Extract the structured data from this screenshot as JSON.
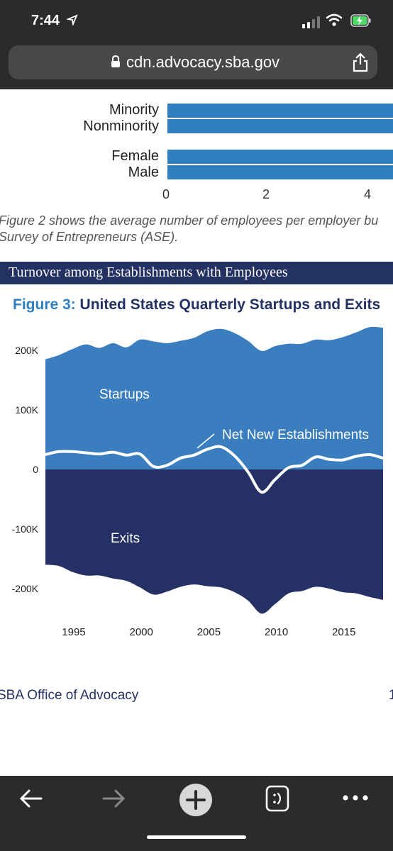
{
  "status_bar": {
    "time": "7:44"
  },
  "browser": {
    "url": "cdn.advocacy.sba.gov"
  },
  "fig2_partial": {
    "bar_labels": [
      "Minority",
      "Nonminority",
      "Female",
      "Male"
    ],
    "axis_ticks": [
      "0",
      "2",
      "4"
    ]
  },
  "caption": {
    "line1": "Figure 2 shows the average number of employees per employer bu",
    "line2": "Survey of Entrepreneurs (ASE)."
  },
  "section": {
    "title": "Turnover among Establishments with Employees"
  },
  "figure3": {
    "label": "Figure 3:",
    "title": "United States Quarterly Startups and Exits"
  },
  "chart_data": {
    "type": "area",
    "title": "United States Quarterly Startups and Exits",
    "ylim": [
      -250000,
      250000
    ],
    "y_ticks": [
      "200K",
      "100K",
      "0",
      "-100K",
      "-200K"
    ],
    "x_ticks": [
      "1995",
      "2000",
      "2005",
      "2010",
      "2015"
    ],
    "series": [
      {
        "name": "Startups",
        "x": [
          1993.0,
          1994.0,
          1995.0,
          1996.0,
          1997.0,
          1998.0,
          1999.0,
          2000.0,
          2001.0,
          2002.0,
          2003.0,
          2004.0,
          2005.0,
          2006.0,
          2007.0,
          2008.0,
          2009.0,
          2010.0,
          2011.0,
          2012.0,
          2013.0,
          2014.0,
          2015.0,
          2016.0,
          2017.0,
          2018.0
        ],
        "values": [
          185000,
          192000,
          202000,
          210000,
          204000,
          212000,
          205000,
          218000,
          215000,
          212000,
          216000,
          221000,
          232000,
          236000,
          229000,
          216000,
          199000,
          207000,
          211000,
          211000,
          218000,
          217000,
          222000,
          230000,
          239000,
          238000
        ]
      },
      {
        "name": "Exits",
        "x": [
          1993.0,
          1994.0,
          1995.0,
          1996.0,
          1997.0,
          1998.0,
          1999.0,
          2000.0,
          2001.0,
          2002.0,
          2003.0,
          2004.0,
          2005.0,
          2006.0,
          2007.0,
          2008.0,
          2009.0,
          2010.0,
          2011.0,
          2012.0,
          2013.0,
          2014.0,
          2015.0,
          2016.0,
          2017.0,
          2018.0
        ],
        "values": [
          -160000,
          -162000,
          -172000,
          -178000,
          -178000,
          -183000,
          -187000,
          -198000,
          -210000,
          -205000,
          -197000,
          -193000,
          -196000,
          -198000,
          -206000,
          -220000,
          -242000,
          -226000,
          -208000,
          -204000,
          -197000,
          -200000,
          -206000,
          -208000,
          -214000,
          -219000
        ]
      },
      {
        "name": "Net New Establishments",
        "x": [
          1993.0,
          1994.0,
          1995.0,
          1996.0,
          1997.0,
          1998.0,
          1999.0,
          2000.0,
          2001.0,
          2002.0,
          2003.0,
          2004.0,
          2005.0,
          2006.0,
          2007.0,
          2008.0,
          2009.0,
          2010.0,
          2011.0,
          2012.0,
          2013.0,
          2014.0,
          2015.0,
          2016.0,
          2017.0,
          2018.0
        ],
        "values": [
          25000,
          30000,
          30000,
          28000,
          26000,
          29000,
          24000,
          26000,
          5000,
          7000,
          19000,
          24000,
          34000,
          38000,
          23000,
          -4000,
          -38000,
          -17000,
          3000,
          7000,
          21000,
          17000,
          16000,
          22000,
          25000,
          19000
        ]
      }
    ],
    "annotations": {
      "startups": "Startups",
      "exits": "Exits",
      "net": "Net New Establishments"
    },
    "colors": {
      "startups": "#3a7ebf",
      "exits": "#253165",
      "net": "#ffffff"
    }
  },
  "footer": {
    "left": "SBA Office of Advocacy",
    "right": "1"
  }
}
